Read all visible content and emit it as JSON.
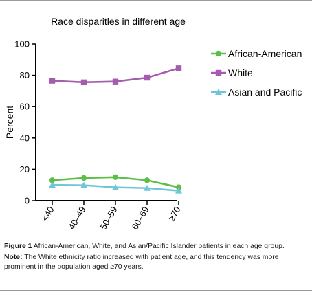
{
  "chart_data": {
    "type": "line",
    "title": "Race disparitles in different age",
    "ylabel": "Percent",
    "xlabel": "",
    "categories": [
      "<40",
      "40–49",
      "50–59",
      "60–69",
      "≥70"
    ],
    "ylim": [
      0,
      100
    ],
    "yticks": [
      0,
      20,
      40,
      60,
      80,
      100
    ],
    "legend_position": "right",
    "grid": false,
    "series": [
      {
        "name": "African-American",
        "values": [
          13,
          14.5,
          15,
          13,
          8.5
        ],
        "color": "#5cbf49",
        "marker": "circle"
      },
      {
        "name": "White",
        "values": [
          76.5,
          75.5,
          76,
          78.5,
          84.5
        ],
        "color": "#a45cac",
        "marker": "square"
      },
      {
        "name": "Asian and Pacific",
        "values": [
          10,
          9.8,
          8.5,
          8,
          6.3
        ],
        "color": "#6fc6d8",
        "marker": "triangle"
      }
    ]
  },
  "caption": {
    "figure_label": "Figure 1",
    "figure_text": "African-American, White, and Asian/Pacific Islander patients in each age group.",
    "note_label": "Note:",
    "note_text": "The White ethnicity ratio increased with patient age, and this tendency was more prominent in the population aged ≥70 years."
  }
}
